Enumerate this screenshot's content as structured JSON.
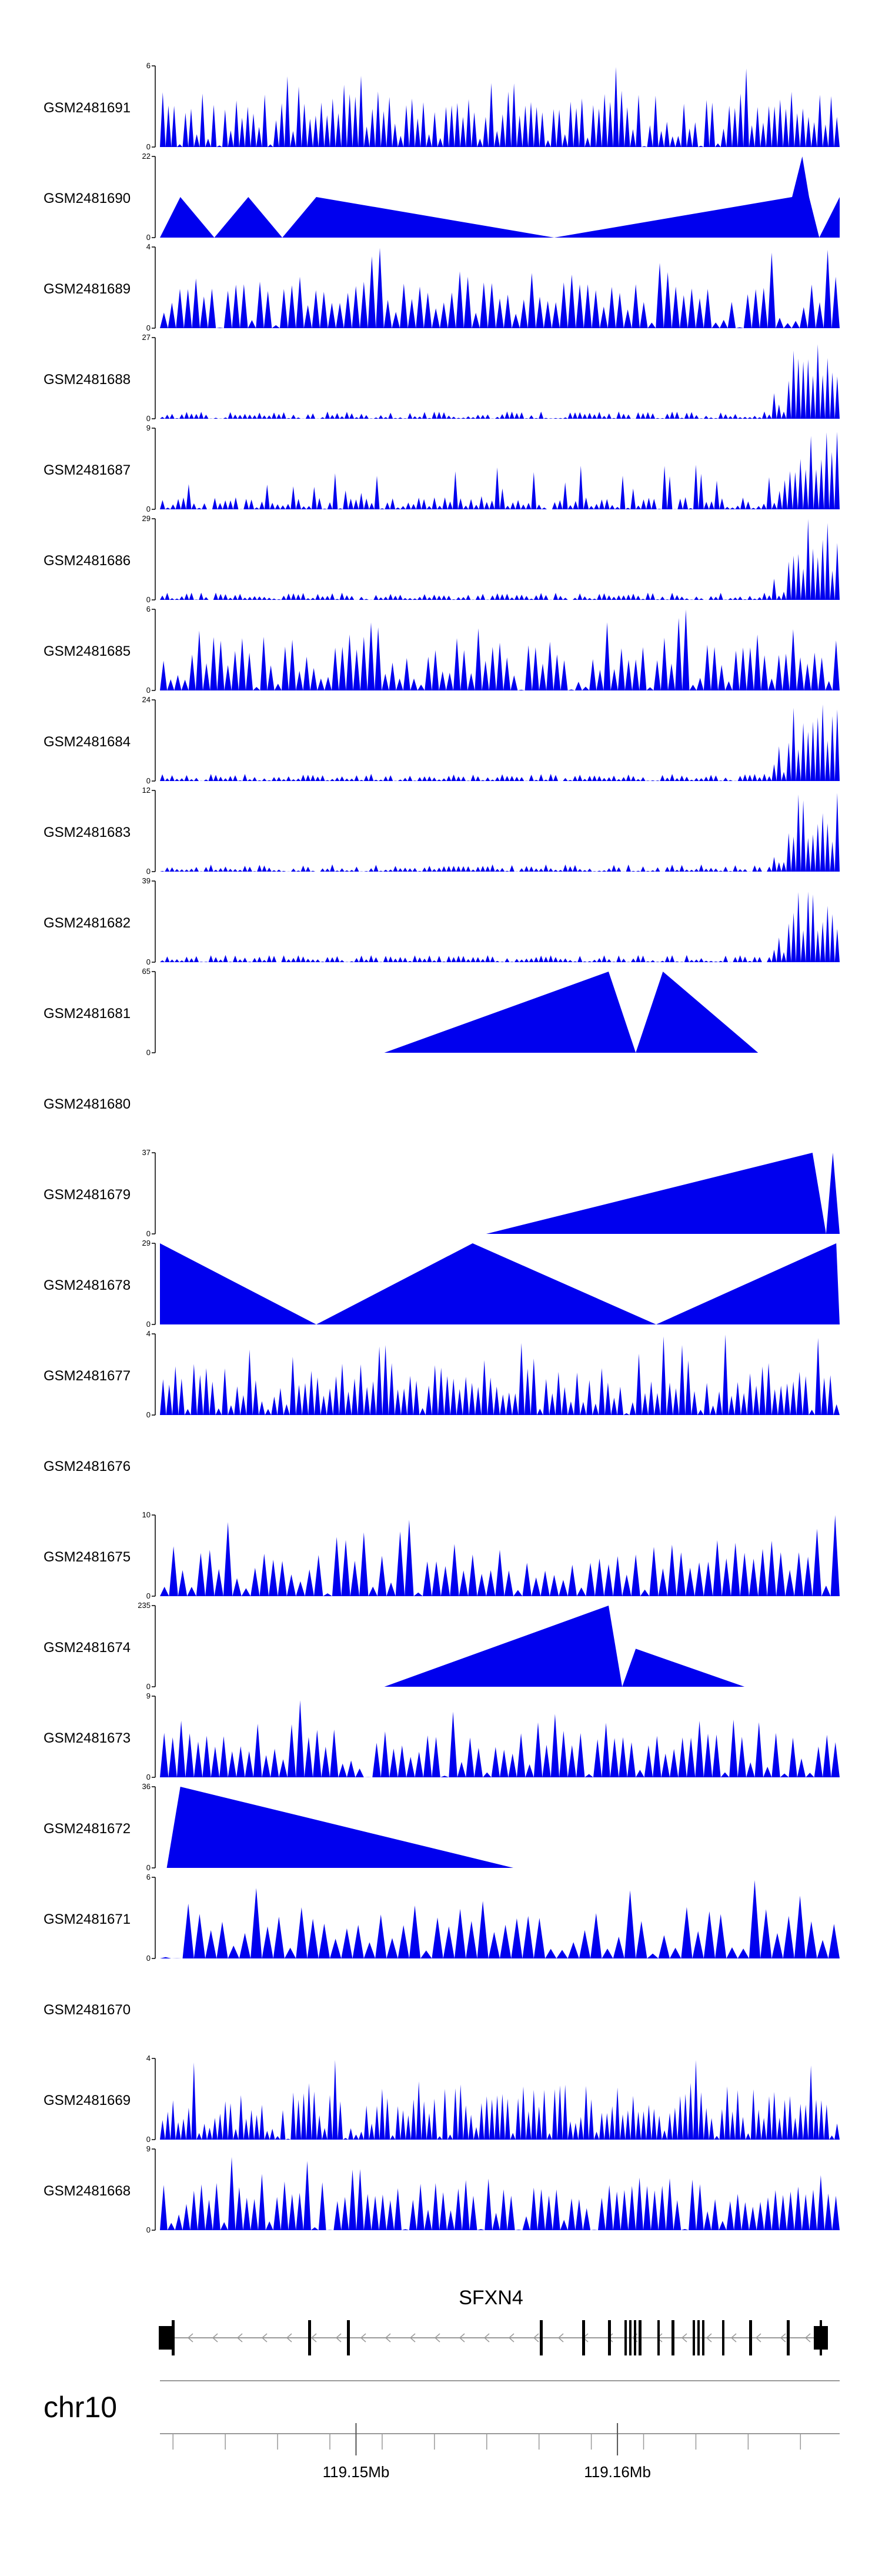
{
  "chart_data": {
    "type": "area",
    "chromosome": "chr10",
    "gene": {
      "name": "SFXN4",
      "strand": "-"
    },
    "axis": {
      "unit": "Mb",
      "range_mb": [
        119.1425,
        119.1685
      ],
      "tick_labels": [
        {
          "value": 119.15,
          "label": "119.15Mb"
        },
        {
          "value": 119.16,
          "label": "119.16Mb"
        }
      ]
    },
    "tracks": [
      {
        "name": "GSM2481691",
        "ymax": 6,
        "ymax_label": "6",
        "ymin_label": "0",
        "shape": "spiky",
        "n": 120,
        "seed": 91
      },
      {
        "name": "GSM2481690",
        "ymax": 22,
        "ymax_label": "22",
        "ymin_label": "0",
        "shape": "points",
        "points": [
          [
            0.0,
            0
          ],
          [
            0.03,
            11
          ],
          [
            0.08,
            0
          ],
          [
            0.13,
            11
          ],
          [
            0.18,
            0
          ],
          [
            0.23,
            11
          ],
          [
            0.58,
            0
          ],
          [
            0.93,
            11
          ],
          [
            0.945,
            22
          ],
          [
            0.955,
            11
          ],
          [
            0.97,
            0
          ],
          [
            1.0,
            11
          ],
          [
            1.04,
            0
          ]
        ]
      },
      {
        "name": "GSM2481689",
        "ymax": 4,
        "ymax_label": "4",
        "ymin_label": "0",
        "shape": "spiky",
        "n": 85,
        "seed": 89
      },
      {
        "name": "GSM2481688",
        "ymax": 27,
        "ymax_label": "27",
        "ymin_label": "0",
        "shape": "endpeak",
        "n": 140,
        "seed": 88
      },
      {
        "name": "GSM2481687",
        "ymax": 9,
        "ymax_label": "9",
        "ymin_label": "0",
        "shape": "endpeak2",
        "n": 130,
        "seed": 87
      },
      {
        "name": "GSM2481686",
        "ymax": 29,
        "ymax_label": "29",
        "ymin_label": "0",
        "shape": "endpeak",
        "n": 140,
        "seed": 86
      },
      {
        "name": "GSM2481685",
        "ymax": 6,
        "ymax_label": "6",
        "ymin_label": "0",
        "shape": "spiky",
        "n": 95,
        "seed": 85
      },
      {
        "name": "GSM2481684",
        "ymax": 24,
        "ymax_label": "24",
        "ymin_label": "0",
        "shape": "endpeak",
        "n": 140,
        "seed": 84
      },
      {
        "name": "GSM2481683",
        "ymax": 12,
        "ymax_label": "12",
        "ymin_label": "0",
        "shape": "endpeak",
        "n": 140,
        "seed": 83
      },
      {
        "name": "GSM2481682",
        "ymax": 39,
        "ymax_label": "39",
        "ymin_label": "0",
        "shape": "endpeak",
        "n": 140,
        "seed": 82
      },
      {
        "name": "GSM2481681",
        "ymax": 65,
        "ymax_label": "65",
        "ymin_label": "0",
        "shape": "points",
        "points": [
          [
            0.33,
            0
          ],
          [
            0.66,
            65
          ],
          [
            0.7,
            0
          ],
          [
            0.74,
            65
          ],
          [
            0.88,
            0
          ]
        ]
      },
      {
        "name": "GSM2481680",
        "empty": true
      },
      {
        "name": "GSM2481679",
        "ymax": 37,
        "ymax_label": "37",
        "ymin_label": "0",
        "shape": "points",
        "points": [
          [
            0.48,
            0
          ],
          [
            0.96,
            37
          ],
          [
            0.98,
            0
          ],
          [
            0.99,
            37
          ],
          [
            1.0,
            0
          ]
        ]
      },
      {
        "name": "GSM2481678",
        "ymax": 29,
        "ymax_label": "29",
        "ymin_label": "0",
        "shape": "points",
        "points": [
          [
            0.0,
            29
          ],
          [
            0.23,
            0
          ],
          [
            0.46,
            29
          ],
          [
            0.73,
            0
          ],
          [
            0.995,
            29
          ],
          [
            1.0,
            0
          ]
        ]
      },
      {
        "name": "GSM2481677",
        "ymax": 4,
        "ymax_label": "4",
        "ymin_label": "0",
        "shape": "spiky",
        "n": 110,
        "seed": 77
      },
      {
        "name": "GSM2481676",
        "empty": true
      },
      {
        "name": "GSM2481675",
        "ymax": 10,
        "ymax_label": "10",
        "ymin_label": "0",
        "shape": "spiky",
        "n": 75,
        "seed": 75,
        "tailmax": 1.0
      },
      {
        "name": "GSM2481674",
        "ymax": 235,
        "ymax_label": "235",
        "ymin_label": "0",
        "shape": "points",
        "points": [
          [
            0.33,
            0
          ],
          [
            0.66,
            235
          ],
          [
            0.68,
            0
          ],
          [
            0.7,
            110
          ],
          [
            0.86,
            0
          ]
        ]
      },
      {
        "name": "GSM2481673",
        "ymax": 9,
        "ymax_label": "9",
        "ymin_label": "0",
        "shape": "spiky",
        "n": 80,
        "seed": 73
      },
      {
        "name": "GSM2481672",
        "ymax": 36,
        "ymax_label": "36",
        "ymin_label": "0",
        "shape": "points",
        "points": [
          [
            0.01,
            0
          ],
          [
            0.03,
            36
          ],
          [
            0.52,
            0
          ]
        ]
      },
      {
        "name": "GSM2481671",
        "ymax": 6,
        "ymax_label": "6",
        "ymin_label": "0",
        "shape": "spiky",
        "n": 60,
        "seed": 71
      },
      {
        "name": "GSM2481670",
        "empty": true
      },
      {
        "name": "GSM2481669",
        "ymax": 4,
        "ymax_label": "4",
        "ymin_label": "0",
        "shape": "spiky",
        "n": 130,
        "seed": 69
      },
      {
        "name": "GSM2481668",
        "ymax": 9,
        "ymax_label": "9",
        "ymin_label": "0",
        "shape": "spiky",
        "n": 90,
        "seed": 68
      }
    ]
  },
  "colors": {
    "fill": "#0000ee",
    "axis": "#000000",
    "gene": "#000000",
    "guide": "#999999"
  }
}
